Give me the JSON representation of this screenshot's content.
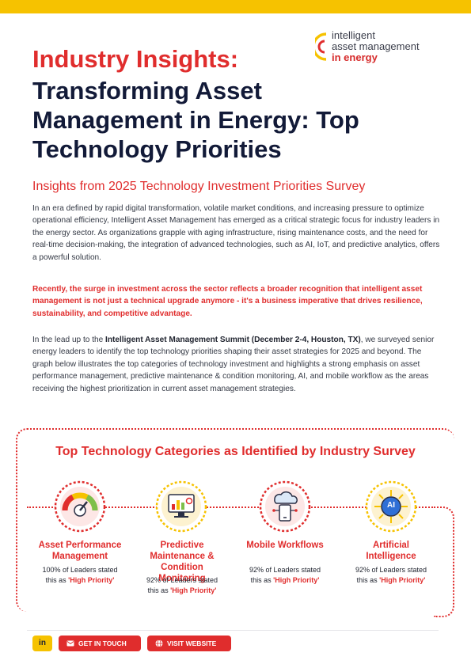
{
  "logo": {
    "line1": "intelligent",
    "line2": "asset management",
    "line3": "in energy"
  },
  "title": {
    "line1": "Industry Insights:",
    "line2": "Transforming Asset Management in Energy: Top Technology Priorities"
  },
  "subtitle": "Insights from 2025 Technology Investment Priorities Survey",
  "paragraph1": "In an era defined by rapid digital transformation, volatile market conditions, and increasing pressure to optimize operational efficiency, Intelligent Asset Management has emerged as a critical strategic focus for industry leaders in the energy sector. As organizations grapple with aging infrastructure, rising maintenance costs, and the need for real-time decision-making, the integration of advanced technologies, such as AI, IoT, and predictive analytics, offers a powerful solution.",
  "paragraph2": "Recently, the surge in investment across the sector reflects a broader recognition that intelligent asset management is not just a technical upgrade anymore - it's a business imperative that drives resilience, sustainability, and competitive advantage.",
  "paragraph3": {
    "before": "In the lead up to the ",
    "bold": "Intelligent Asset Management Summit (December 2-4, Houston, TX)",
    "after": ", we surveyed senior energy leaders to identify the top technology priorities shaping their asset strategies for 2025 and beyond. The graph below illustrates the top categories of technology investment and highlights a strong emphasis on asset performance management, predictive maintenance & condition monitoring, AI, and mobile workflow as the areas receiving the highest prioritization in current asset management strategies."
  },
  "section_title": "Top Technology Categories as Identified by Industry Survey",
  "categories": [
    {
      "name": "Asset Performance Management",
      "stat_line1": "100% of Leaders stated",
      "stat_pre": "this as ",
      "stat_hp": "'High Priority'",
      "icon": "gauge-icon"
    },
    {
      "name": "Predictive Maintenance & Condition Monitoring",
      "stat_line1": "92% of Leaders stated",
      "stat_pre": "this as ",
      "stat_hp": "'High Priority'",
      "icon": "dashboard-analytics-icon"
    },
    {
      "name": "Mobile Workflows",
      "stat_line1": "92% of Leaders stated",
      "stat_pre": "this as ",
      "stat_hp": "'High Priority'",
      "icon": "cloud-mobile-icon"
    },
    {
      "name": "Artificial Intelligence",
      "stat_line1": "92% of Leaders stated",
      "stat_pre": "this as ",
      "stat_hp": "'High Priority'",
      "icon": "ai-chip-icon",
      "icon_text": "AI"
    }
  ],
  "footer": {
    "linkedin": "in",
    "get_in_touch": "GET IN TOUCH",
    "visit_website": "VISIT WEBSITE"
  },
  "colors": {
    "accent_red": "#e02d2d",
    "accent_yellow": "#f6c200",
    "navy": "#121a38"
  }
}
